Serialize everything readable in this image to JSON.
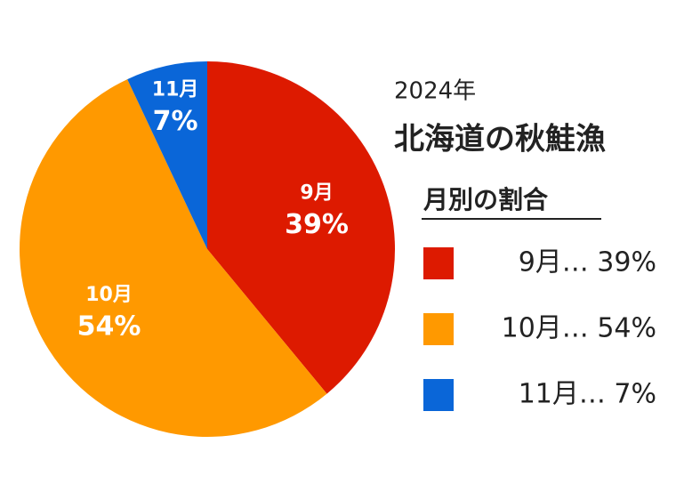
{
  "chart_data": {
    "type": "pie",
    "subtitle": "2024年",
    "title": "北海道の秋鮭漁",
    "categories": [
      "9月",
      "10月",
      "11月"
    ],
    "values": [
      39,
      54,
      7
    ],
    "value_labels": [
      "39%",
      "54%",
      "7%"
    ],
    "colors": [
      "#dd1a00",
      "#ff9900",
      "#0a66d8"
    ],
    "legend": {
      "title": "月別の割合",
      "entries": [
        "9月… 39%",
        "10月… 54%",
        "11月…  7%"
      ]
    }
  }
}
